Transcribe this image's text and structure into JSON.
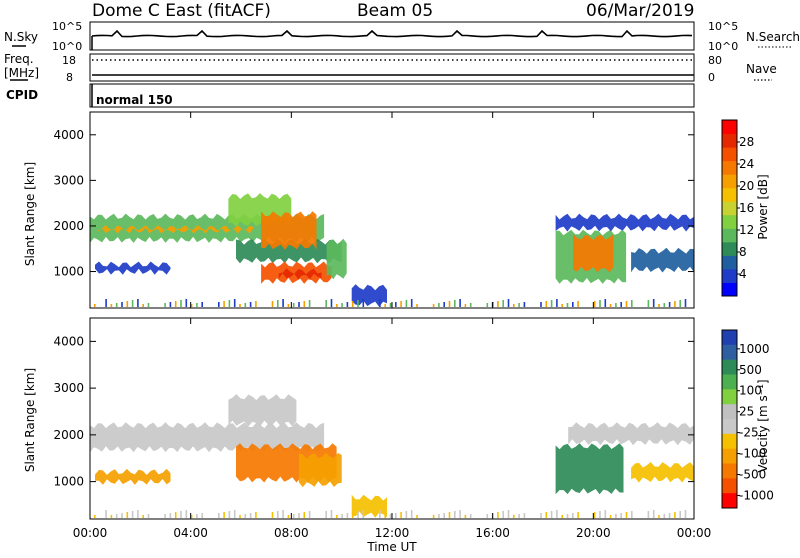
{
  "header": {
    "station": "Dome C East (fitACF)",
    "beam": "Beam 05",
    "date": "06/Mar/2019"
  },
  "nsky_panel": {
    "left_label": "N.Sky",
    "right_label": "N.Search",
    "left_ticks": [
      "10^5",
      "10^0"
    ],
    "right_ticks": [
      "10^5",
      "10^0"
    ]
  },
  "freq_panel": {
    "left_label": "Freq.",
    "left_unit": "[MHz]",
    "right_label": "Nave",
    "left_ticks": [
      "18",
      "8"
    ],
    "right_ticks": [
      "80",
      "0"
    ]
  },
  "cpid_panel": {
    "label": "CPID",
    "value": "normal 150"
  },
  "chart_data": [
    {
      "type": "heatmap",
      "name": "power",
      "ylabel": "Slant Range [km]",
      "ylim": [
        200,
        4500
      ],
      "yticks": [
        1000,
        2000,
        3000,
        4000
      ],
      "xlim": [
        0,
        24
      ],
      "colorbar": {
        "label": "Power [dB]",
        "ticks": [
          "4",
          "8",
          "12",
          "16",
          "20",
          "24",
          "28"
        ],
        "colors": [
          "#0000ff",
          "#1e3cc8",
          "#1f5fa0",
          "#2e8b57",
          "#5cb85c",
          "#80d040",
          "#c8d232",
          "#f5c000",
          "#f5a000",
          "#f57800",
          "#f55000",
          "#e62800",
          "#ff0000"
        ]
      },
      "regions": [
        {
          "t0": 0.0,
          "t1": 9.3,
          "r0": 1650,
          "r1": 2250,
          "color": "#5cb85c"
        },
        {
          "t0": 0.3,
          "t1": 6.5,
          "r0": 1850,
          "r1": 2000,
          "color": "#f5a000"
        },
        {
          "t0": 5.5,
          "t1": 8.0,
          "r0": 2000,
          "r1": 2700,
          "color": "#80d040"
        },
        {
          "t0": 0.2,
          "t1": 3.2,
          "r0": 950,
          "r1": 1200,
          "color": "#1e3cc8"
        },
        {
          "t0": 5.8,
          "t1": 10.0,
          "r0": 1200,
          "r1": 1700,
          "color": "#2e8b57"
        },
        {
          "t0": 6.8,
          "t1": 9.0,
          "r0": 1500,
          "r1": 2300,
          "color": "#f57800"
        },
        {
          "t0": 6.8,
          "t1": 9.6,
          "r0": 750,
          "r1": 1200,
          "color": "#f55000"
        },
        {
          "t0": 7.5,
          "t1": 9.2,
          "r0": 850,
          "r1": 1050,
          "color": "#e62800"
        },
        {
          "t0": 9.4,
          "t1": 10.2,
          "r0": 850,
          "r1": 1700,
          "color": "#5cb85c"
        },
        {
          "t0": 10.4,
          "t1": 11.8,
          "r0": 250,
          "r1": 700,
          "color": "#1e3cc8"
        },
        {
          "t0": 18.5,
          "t1": 21.3,
          "r0": 750,
          "r1": 1900,
          "color": "#5cb85c"
        },
        {
          "t0": 19.2,
          "t1": 20.8,
          "r0": 1000,
          "r1": 1800,
          "color": "#f57800"
        },
        {
          "t0": 18.5,
          "t1": 24.0,
          "r0": 1900,
          "r1": 2250,
          "color": "#1e3cc8"
        },
        {
          "t0": 21.5,
          "t1": 24.0,
          "r0": 1000,
          "r1": 1500,
          "color": "#1f5fa0"
        }
      ]
    },
    {
      "type": "heatmap",
      "name": "velocity",
      "ylabel": "Slant Range [km]",
      "ylim": [
        200,
        4500
      ],
      "yticks": [
        1000,
        2000,
        3000,
        4000
      ],
      "xlim": [
        0,
        24
      ],
      "xticks": [
        "00:00",
        "04:00",
        "08:00",
        "12:00",
        "16:00",
        "20:00",
        "00:00"
      ],
      "xlabel": "Time UT",
      "colorbar": {
        "label": "Velocity [m s⁻¹]",
        "ticks": [
          "1000",
          "500",
          "100",
          "25",
          "-25",
          "-100",
          "-500",
          "-1000"
        ],
        "colors": [
          "#2040b0",
          "#2e5fa0",
          "#2e8b57",
          "#4caf50",
          "#80d040",
          "#c0c0c0",
          "#c8c8c8",
          "#f5c000",
          "#f5a000",
          "#f57800",
          "#f55000",
          "#ff0000"
        ]
      },
      "regions": [
        {
          "t0": 0.0,
          "t1": 9.3,
          "r0": 1650,
          "r1": 2250,
          "color": "#c8c8c8"
        },
        {
          "t0": 5.5,
          "t1": 8.2,
          "r0": 2200,
          "r1": 2850,
          "color": "#c8c8c8"
        },
        {
          "t0": 0.2,
          "t1": 3.2,
          "r0": 950,
          "r1": 1250,
          "color": "#f5a000"
        },
        {
          "t0": 5.8,
          "t1": 9.8,
          "r0": 1000,
          "r1": 1800,
          "color": "#f57800"
        },
        {
          "t0": 8.3,
          "t1": 10.0,
          "r0": 900,
          "r1": 1600,
          "color": "#f5a000"
        },
        {
          "t0": 10.4,
          "t1": 11.8,
          "r0": 250,
          "r1": 700,
          "color": "#f5c000"
        },
        {
          "t0": 18.5,
          "t1": 21.2,
          "r0": 750,
          "r1": 1800,
          "color": "#2e8b57"
        },
        {
          "t0": 19.0,
          "t1": 24.0,
          "r0": 1800,
          "r1": 2250,
          "color": "#c8c8c8"
        },
        {
          "t0": 21.5,
          "t1": 24.0,
          "r0": 1000,
          "r1": 1400,
          "color": "#f5c000"
        }
      ]
    }
  ]
}
